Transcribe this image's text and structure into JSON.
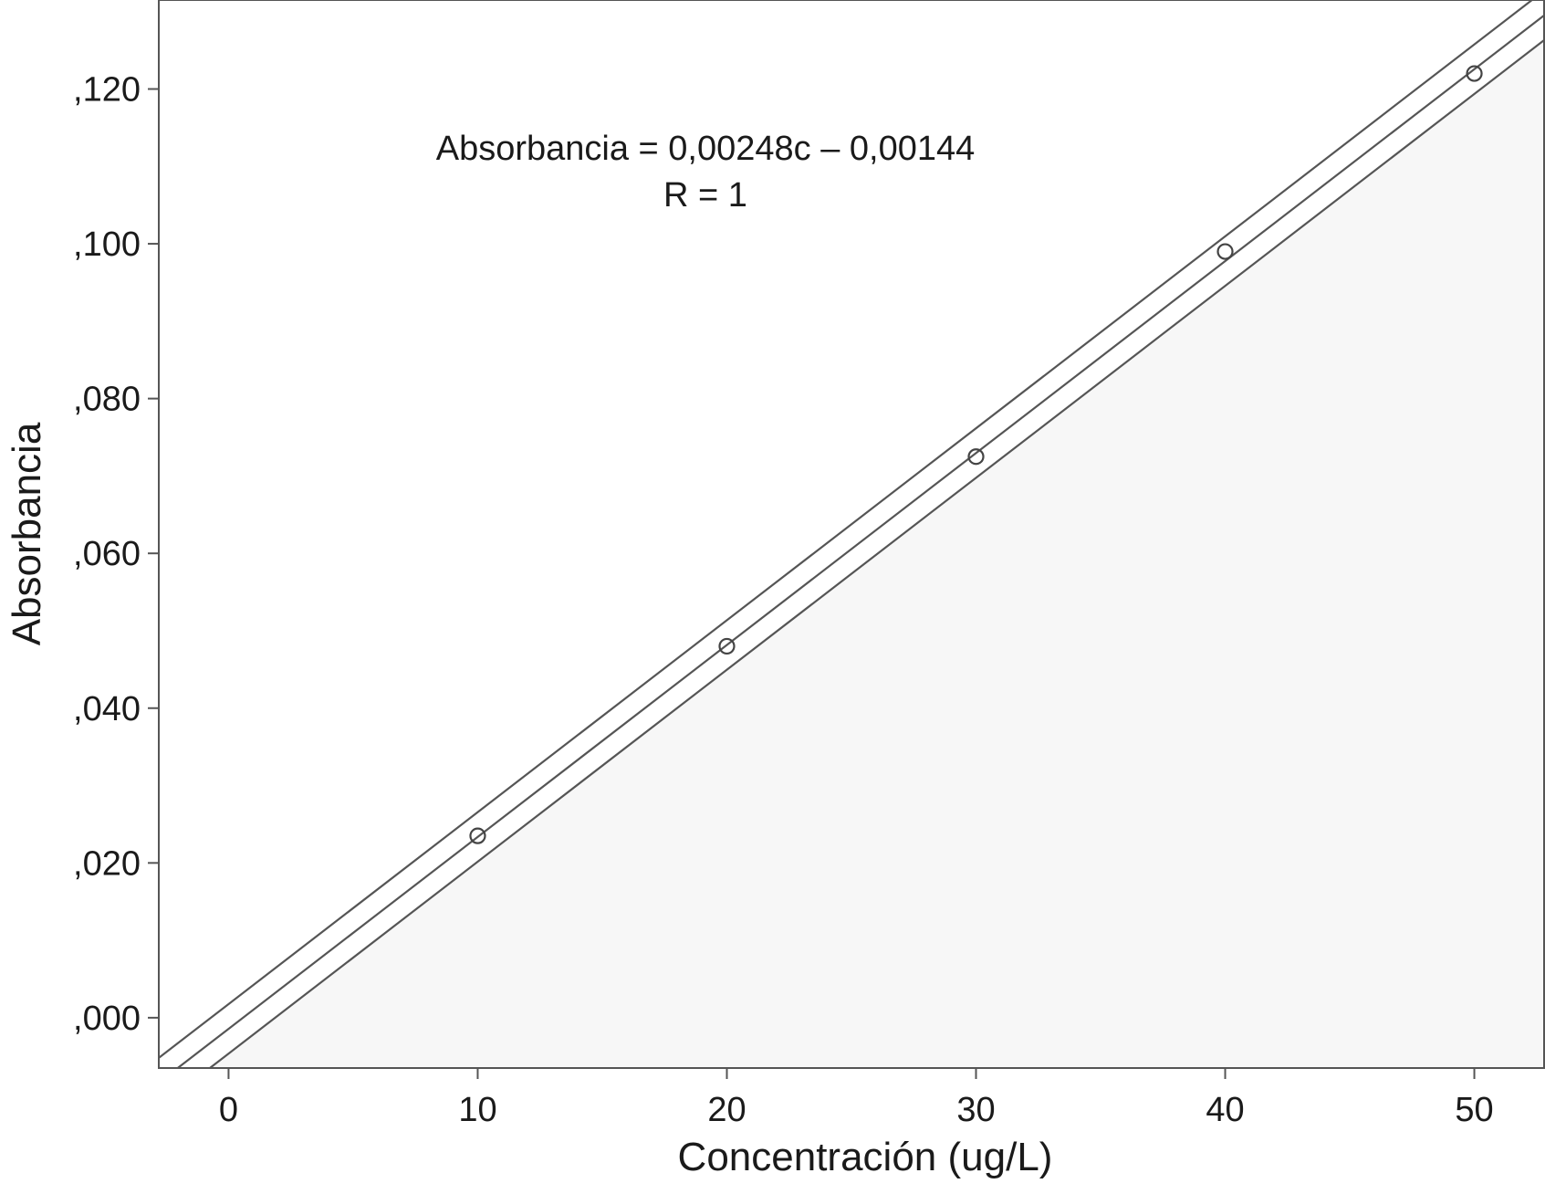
{
  "chart_data": {
    "type": "scatter",
    "xlabel": "Concentración (ug/L)",
    "ylabel": "Absorbancia",
    "xlim": [
      -2.8,
      52.8
    ],
    "ylim": [
      -0.0065,
      0.1315
    ],
    "x_ticks": [
      0,
      10,
      20,
      30,
      40,
      50
    ],
    "x_tick_labels": [
      "0",
      "10",
      "20",
      "30",
      "40",
      "50"
    ],
    "y_ticks": [
      0.0,
      0.02,
      0.04,
      0.06,
      0.08,
      0.1,
      0.12
    ],
    "y_tick_labels": [
      ",000",
      ",020",
      ",040",
      ",060",
      ",080",
      ",100",
      ",120"
    ],
    "points": [
      {
        "x": 10,
        "y": 0.0235
      },
      {
        "x": 20,
        "y": 0.048
      },
      {
        "x": 30,
        "y": 0.0725
      },
      {
        "x": 40,
        "y": 0.099
      },
      {
        "x": 50,
        "y": 0.122
      }
    ],
    "fit_line": {
      "slope": 0.00248,
      "intercept": -0.00144
    },
    "confidence_band_offset": 0.0032,
    "equation_text": "Absorbancia = 0,00248c – 0,00144",
    "r_text": "R = 1",
    "grid": false,
    "colors": {
      "line": "#555555",
      "point": "#444444",
      "plot_fill": "#f7f7f7",
      "axis": "#555555",
      "text": "#1a1a1a"
    }
  }
}
